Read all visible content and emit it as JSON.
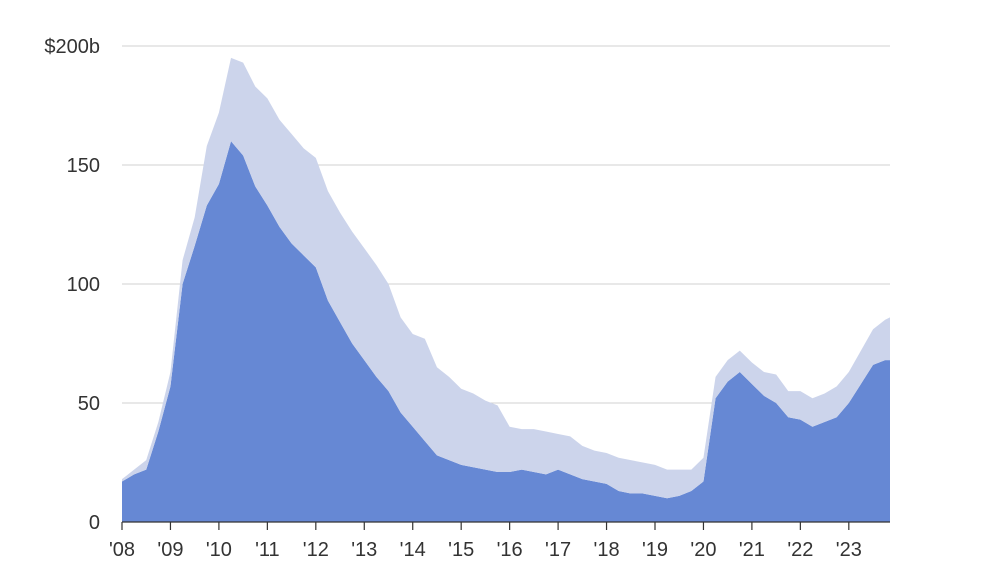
{
  "chart_data": {
    "type": "area",
    "stacked": true,
    "title": "",
    "xlabel": "",
    "ylabel": "",
    "ylim": [
      0,
      200
    ],
    "xlim": [
      2008.0,
      2023.85
    ],
    "grid": "horizontal",
    "legend": "none",
    "y_ticks": [
      {
        "value": 0,
        "label": "0"
      },
      {
        "value": 50,
        "label": "50"
      },
      {
        "value": 100,
        "label": "100"
      },
      {
        "value": 150,
        "label": "150"
      },
      {
        "value": 200,
        "label": "$200b"
      }
    ],
    "x_ticks": [
      {
        "value": 2008,
        "label": "'08"
      },
      {
        "value": 2009,
        "label": "'09"
      },
      {
        "value": 2010,
        "label": "'10"
      },
      {
        "value": 2011,
        "label": "'11"
      },
      {
        "value": 2012,
        "label": "'12"
      },
      {
        "value": 2013,
        "label": "'13"
      },
      {
        "value": 2014,
        "label": "'14"
      },
      {
        "value": 2015,
        "label": "'15"
      },
      {
        "value": 2016,
        "label": "'16"
      },
      {
        "value": 2017,
        "label": "'17"
      },
      {
        "value": 2018,
        "label": "'18"
      },
      {
        "value": 2019,
        "label": "'19"
      },
      {
        "value": 2020,
        "label": "'20"
      },
      {
        "value": 2021,
        "label": "'21"
      },
      {
        "value": 2022,
        "label": "'22"
      },
      {
        "value": 2023,
        "label": "'23"
      }
    ],
    "x": [
      2008.0,
      2008.25,
      2008.5,
      2008.75,
      2009.0,
      2009.25,
      2009.5,
      2009.75,
      2010.0,
      2010.25,
      2010.5,
      2010.75,
      2011.0,
      2011.25,
      2011.5,
      2011.75,
      2012.0,
      2012.25,
      2012.5,
      2012.75,
      2013.0,
      2013.25,
      2013.5,
      2013.75,
      2014.0,
      2014.25,
      2014.5,
      2014.75,
      2015.0,
      2015.25,
      2015.5,
      2015.75,
      2016.0,
      2016.25,
      2016.5,
      2016.75,
      2017.0,
      2017.25,
      2017.5,
      2017.75,
      2018.0,
      2018.25,
      2018.5,
      2018.75,
      2019.0,
      2019.25,
      2019.5,
      2019.75,
      2020.0,
      2020.25,
      2020.5,
      2020.75,
      2021.0,
      2021.25,
      2021.5,
      2021.75,
      2022.0,
      2022.25,
      2022.5,
      2022.75,
      2023.0,
      2023.25,
      2023.5,
      2023.75,
      2023.85
    ],
    "series": [
      {
        "color": "#6688d4",
        "values": [
          17,
          20,
          22,
          38,
          57,
          100,
          116,
          133,
          142,
          160,
          154,
          141,
          133,
          124,
          117,
          112,
          107,
          93,
          84,
          75,
          68,
          61,
          55,
          46,
          40,
          34,
          28,
          26,
          24,
          23,
          22,
          21,
          21,
          22,
          21,
          20,
          22,
          20,
          18,
          17,
          16,
          13,
          12,
          12,
          11,
          10,
          11,
          13,
          17,
          52,
          59,
          63,
          58,
          53,
          50,
          44,
          43,
          40,
          42,
          44,
          50,
          58,
          66,
          68,
          68
        ]
      },
      {
        "color": "#ccd4eb",
        "values": [
          1,
          2,
          4,
          4,
          6,
          10,
          12,
          25,
          30,
          35,
          39,
          42,
          45,
          45,
          46,
          45,
          46,
          46,
          46,
          47,
          47,
          47,
          45,
          40,
          39,
          43,
          37,
          35,
          32,
          31,
          29,
          28,
          19,
          17,
          18,
          18,
          15,
          16,
          14,
          13,
          13,
          14,
          14,
          13,
          13,
          12,
          11,
          9,
          10,
          9,
          9,
          9,
          9,
          10,
          12,
          11,
          12,
          12,
          12,
          13,
          13,
          14,
          15,
          17,
          18
        ]
      }
    ]
  }
}
